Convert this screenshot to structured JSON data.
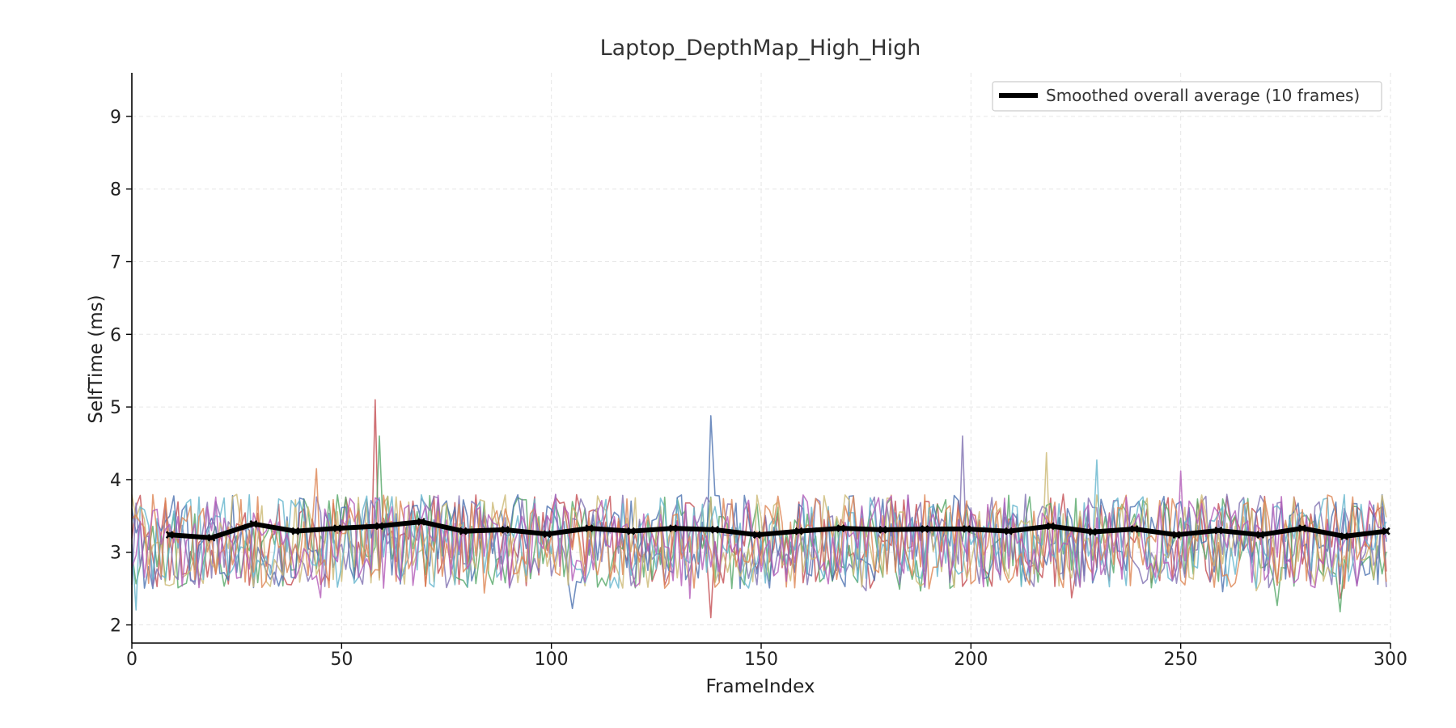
{
  "chart_data": {
    "type": "line",
    "title": "Laptop_DepthMap_High_High",
    "xlabel": "FrameIndex",
    "ylabel": "SelfTime (ms)",
    "xlim": [
      0,
      300
    ],
    "ylim": [
      1.75,
      9.6
    ],
    "x_ticks": [
      0,
      50,
      100,
      150,
      200,
      250,
      300
    ],
    "y_ticks": [
      2,
      3,
      4,
      5,
      6,
      7,
      8,
      9
    ],
    "grid": true,
    "legend_position": "top-right",
    "noisy_series": {
      "count": 8,
      "frame_range": [
        0,
        299
      ],
      "typical_range": [
        2.5,
        3.8
      ],
      "colors": [
        "#c44e52",
        "#55a868",
        "#4c72b0",
        "#8172b2",
        "#ccb974",
        "#64b5cd",
        "#dd8452",
        "#b35bb8"
      ],
      "spikes": [
        {
          "frame": 58,
          "value": 5.1
        },
        {
          "frame": 59,
          "value": 4.6
        },
        {
          "frame": 138,
          "value": 4.88
        },
        {
          "frame": 198,
          "value": 4.6
        },
        {
          "frame": 218,
          "value": 4.37
        },
        {
          "frame": 230,
          "value": 4.27
        },
        {
          "frame": 44,
          "value": 4.15
        },
        {
          "frame": 250,
          "value": 4.12
        },
        {
          "frame": 138,
          "value": 2.1
        },
        {
          "frame": 288,
          "value": 2.18
        }
      ]
    },
    "series": [
      {
        "name": "Smoothed overall average (10 frames)",
        "color": "#000000",
        "x": [
          9,
          19,
          29,
          39,
          49,
          59,
          69,
          79,
          89,
          99,
          109,
          119,
          129,
          139,
          149,
          159,
          169,
          179,
          189,
          199,
          209,
          219,
          229,
          239,
          249,
          259,
          269,
          279,
          289,
          299
        ],
        "y": [
          3.24,
          3.2,
          3.39,
          3.29,
          3.33,
          3.36,
          3.42,
          3.29,
          3.31,
          3.25,
          3.33,
          3.29,
          3.33,
          3.31,
          3.24,
          3.29,
          3.33,
          3.31,
          3.32,
          3.32,
          3.29,
          3.36,
          3.28,
          3.32,
          3.24,
          3.3,
          3.24,
          3.33,
          3.22,
          3.29
        ]
      }
    ]
  }
}
